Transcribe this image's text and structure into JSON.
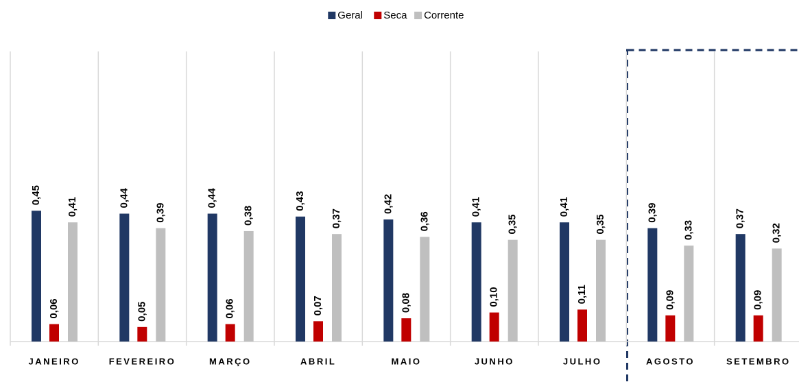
{
  "chart_data": {
    "type": "bar",
    "categories": [
      "JANEIRO",
      "FEVEREIRO",
      "MARÇO",
      "ABRIL",
      "MAIO",
      "JUNHO",
      "JULHO",
      "AGOSTO",
      "SETEMBRO"
    ],
    "series": [
      {
        "name": "Geral",
        "color": "#203864",
        "values": [
          0.45,
          0.44,
          0.44,
          0.43,
          0.42,
          0.41,
          0.41,
          0.39,
          0.37
        ],
        "value_labels": [
          "0,45",
          "0,44",
          "0,44",
          "0,43",
          "0,42",
          "0,41",
          "0,41",
          "0,39",
          "0,37"
        ]
      },
      {
        "name": "Seca",
        "color": "#c00000",
        "values": [
          0.06,
          0.05,
          0.06,
          0.07,
          0.08,
          0.1,
          0.11,
          0.09,
          0.09
        ],
        "value_labels": [
          "0,06",
          "0,05",
          "0,06",
          "0,07",
          "0,08",
          "0,10",
          "0,11",
          "0,09",
          "0,09"
        ]
      },
      {
        "name": "Corrente",
        "color": "#bfbfbf",
        "values": [
          0.41,
          0.39,
          0.38,
          0.37,
          0.36,
          0.35,
          0.35,
          0.33,
          0.32
        ],
        "value_labels": [
          "0,41",
          "0,39",
          "0,38",
          "0,37",
          "0,36",
          "0,35",
          "0,35",
          "0,33",
          "0,32"
        ]
      }
    ],
    "ylim": [
      0,
      1.05
    ],
    "legend": "top"
  }
}
